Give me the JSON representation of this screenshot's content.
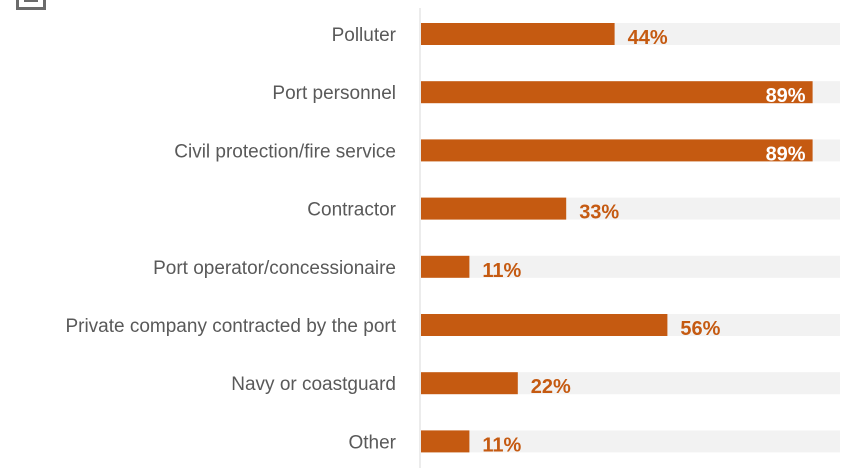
{
  "chart_data": {
    "type": "bar",
    "orientation": "horizontal",
    "categories": [
      "Polluter",
      "Port personnel",
      "Civil protection/fire service",
      "Contractor",
      "Port operator/concessionaire",
      "Private company contracted by the port",
      "Navy or coastguard",
      "Other"
    ],
    "values": [
      44,
      89,
      89,
      33,
      11,
      56,
      22,
      11
    ],
    "value_labels": [
      "44%",
      "89%",
      "89%",
      "33%",
      "11%",
      "56%",
      "22%",
      "11%"
    ],
    "xlim": [
      0,
      100
    ],
    "title": "",
    "xlabel": "",
    "ylabel": "",
    "grid": false,
    "background_track": true,
    "colors": {
      "bar": "#c55a11",
      "track": "#f2f2f2",
      "axis": "#d9d9d9",
      "label_outside": "#c55a11",
      "label_inside": "#ffffff",
      "category_text": "#595959"
    }
  },
  "decor": {
    "corner_icon": "window-icon"
  }
}
